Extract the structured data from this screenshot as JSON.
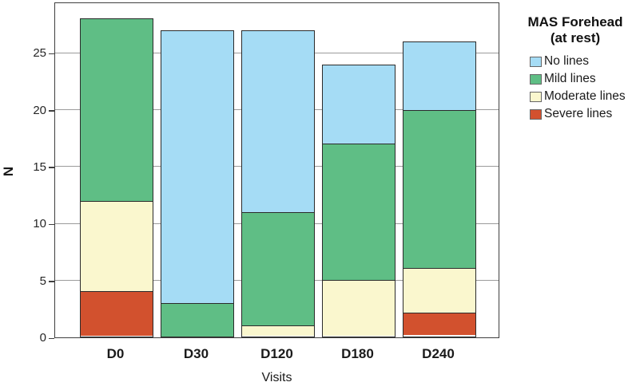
{
  "figure": {
    "y_axis_label": "N",
    "x_axis_label": "Visits"
  },
  "legend": {
    "title_line1": "MAS Forehead",
    "title_line2": "(at rest)"
  },
  "chart_data": {
    "type": "bar",
    "stacked": true,
    "title": "MAS Forehead (at rest)",
    "xlabel": "Visits",
    "ylabel": "N",
    "categories": [
      "D0",
      "D30",
      "D120",
      "D180",
      "D240"
    ],
    "series": [
      {
        "name": "No lines",
        "color": "#A5DCF5",
        "values": [
          0,
          24,
          16,
          7,
          6
        ]
      },
      {
        "name": "Mild lines",
        "color": "#5FBE85",
        "values": [
          16,
          3,
          10,
          12,
          14
        ]
      },
      {
        "name": "Moderate lines",
        "color": "#FAF7CE",
        "values": [
          8,
          0,
          1,
          5,
          4
        ]
      },
      {
        "name": "Severe lines",
        "color": "#D2512E",
        "values": [
          4,
          0,
          0,
          0,
          2
        ]
      }
    ],
    "totals": [
      28,
      27,
      27,
      24,
      26
    ],
    "ylim": [
      0,
      29.5
    ],
    "yticks": [
      0,
      5,
      10,
      15,
      20,
      25
    ],
    "grid": true,
    "legend_position": "right",
    "stack_order_bottom_to_top": [
      "Severe lines",
      "Moderate lines",
      "Mild lines",
      "No lines"
    ]
  },
  "colors": {
    "grid": "#9B9B9B",
    "frame": "#3F3F3F",
    "bar_border": "#2B2B2B",
    "background": "#FFFFFF"
  }
}
